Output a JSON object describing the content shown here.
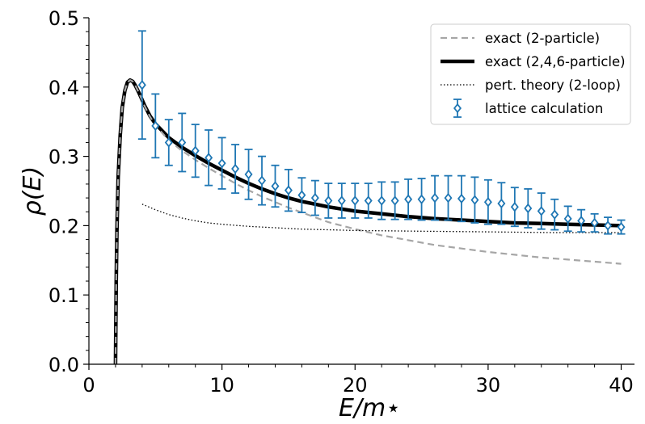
{
  "chart_data": {
    "type": "line",
    "xlabel": "E/m⋆",
    "ylabel": "ρ(E)",
    "xlim": [
      0,
      41
    ],
    "ylim": [
      0,
      0.5
    ],
    "x_ticks": [
      "0",
      "10",
      "20",
      "30",
      "40"
    ],
    "y_ticks": [
      "0.0",
      "0.1",
      "0.2",
      "0.3",
      "0.4",
      "0.5"
    ],
    "grid": false,
    "legend_position": "top-right",
    "colors": {
      "exact_2": "#a6a6a6",
      "exact_246": "#000000",
      "pert": "#000000",
      "lattice": "#1f77b4"
    },
    "series": [
      {
        "name": "exact (2-particle)",
        "style": "dashed",
        "x": [
          2.0,
          2.05,
          2.1,
          2.2,
          2.35,
          2.5,
          2.7,
          2.9,
          3.1,
          3.3,
          3.5,
          3.8,
          4.2,
          4.6,
          5,
          6,
          7,
          8,
          9,
          10,
          11,
          12,
          13,
          14,
          15,
          16,
          17,
          18,
          19,
          20,
          22,
          24,
          26,
          28,
          30,
          32,
          34,
          36,
          38,
          40
        ],
        "y": [
          0.0,
          0.12,
          0.19,
          0.27,
          0.33,
          0.37,
          0.395,
          0.407,
          0.41,
          0.408,
          0.402,
          0.39,
          0.372,
          0.357,
          0.345,
          0.323,
          0.308,
          0.295,
          0.283,
          0.272,
          0.261,
          0.251,
          0.242,
          0.234,
          0.226,
          0.219,
          0.212,
          0.205,
          0.2,
          0.195,
          0.186,
          0.179,
          0.172,
          0.167,
          0.162,
          0.158,
          0.154,
          0.151,
          0.148,
          0.145
        ]
      },
      {
        "name": "exact (2,4,6-particle)",
        "style": "solid",
        "x": [
          2.0,
          2.05,
          2.1,
          2.2,
          2.35,
          2.5,
          2.7,
          2.9,
          3.1,
          3.3,
          3.5,
          3.8,
          4.2,
          4.6,
          5,
          6,
          7,
          8,
          9,
          10,
          11,
          12,
          13,
          14,
          15,
          16,
          17,
          18,
          19,
          20,
          22,
          24,
          26,
          28,
          30,
          32,
          34,
          36,
          38,
          40
        ],
        "y": [
          0.0,
          0.12,
          0.19,
          0.27,
          0.33,
          0.37,
          0.395,
          0.407,
          0.41,
          0.408,
          0.402,
          0.39,
          0.373,
          0.358,
          0.347,
          0.327,
          0.313,
          0.301,
          0.29,
          0.28,
          0.27,
          0.261,
          0.253,
          0.246,
          0.24,
          0.235,
          0.231,
          0.227,
          0.224,
          0.221,
          0.217,
          0.213,
          0.21,
          0.208,
          0.206,
          0.204,
          0.203,
          0.202,
          0.201,
          0.2
        ]
      },
      {
        "name": "pert. theory (2-loop)",
        "style": "dotted",
        "x": [
          4,
          5,
          6,
          7,
          8,
          9,
          10,
          12,
          14,
          16,
          18,
          20,
          25,
          30,
          35,
          40
        ],
        "y": [
          0.231,
          0.223,
          0.216,
          0.211,
          0.207,
          0.204,
          0.202,
          0.199,
          0.197,
          0.195,
          0.194,
          0.193,
          0.192,
          0.191,
          0.19,
          0.19
        ]
      },
      {
        "name": "lattice calculation",
        "style": "errorbar",
        "x": [
          4,
          5,
          6,
          7,
          8,
          9,
          10,
          11,
          12,
          13,
          14,
          15,
          16,
          17,
          18,
          19,
          20,
          21,
          22,
          23,
          24,
          25,
          26,
          27,
          28,
          29,
          30,
          31,
          32,
          33,
          34,
          35,
          36,
          37,
          38,
          39,
          40
        ],
        "y": [
          0.403,
          0.344,
          0.32,
          0.32,
          0.308,
          0.298,
          0.29,
          0.282,
          0.274,
          0.265,
          0.257,
          0.251,
          0.244,
          0.24,
          0.236,
          0.236,
          0.236,
          0.236,
          0.236,
          0.236,
          0.238,
          0.238,
          0.24,
          0.24,
          0.239,
          0.237,
          0.234,
          0.232,
          0.227,
          0.225,
          0.221,
          0.216,
          0.21,
          0.207,
          0.204,
          0.2,
          0.198
        ],
        "err": [
          0.078,
          0.046,
          0.033,
          0.042,
          0.038,
          0.04,
          0.037,
          0.035,
          0.036,
          0.035,
          0.03,
          0.03,
          0.025,
          0.025,
          0.025,
          0.025,
          0.025,
          0.025,
          0.027,
          0.027,
          0.029,
          0.03,
          0.032,
          0.032,
          0.033,
          0.033,
          0.032,
          0.03,
          0.028,
          0.028,
          0.026,
          0.022,
          0.018,
          0.016,
          0.013,
          0.012,
          0.01
        ]
      }
    ]
  }
}
